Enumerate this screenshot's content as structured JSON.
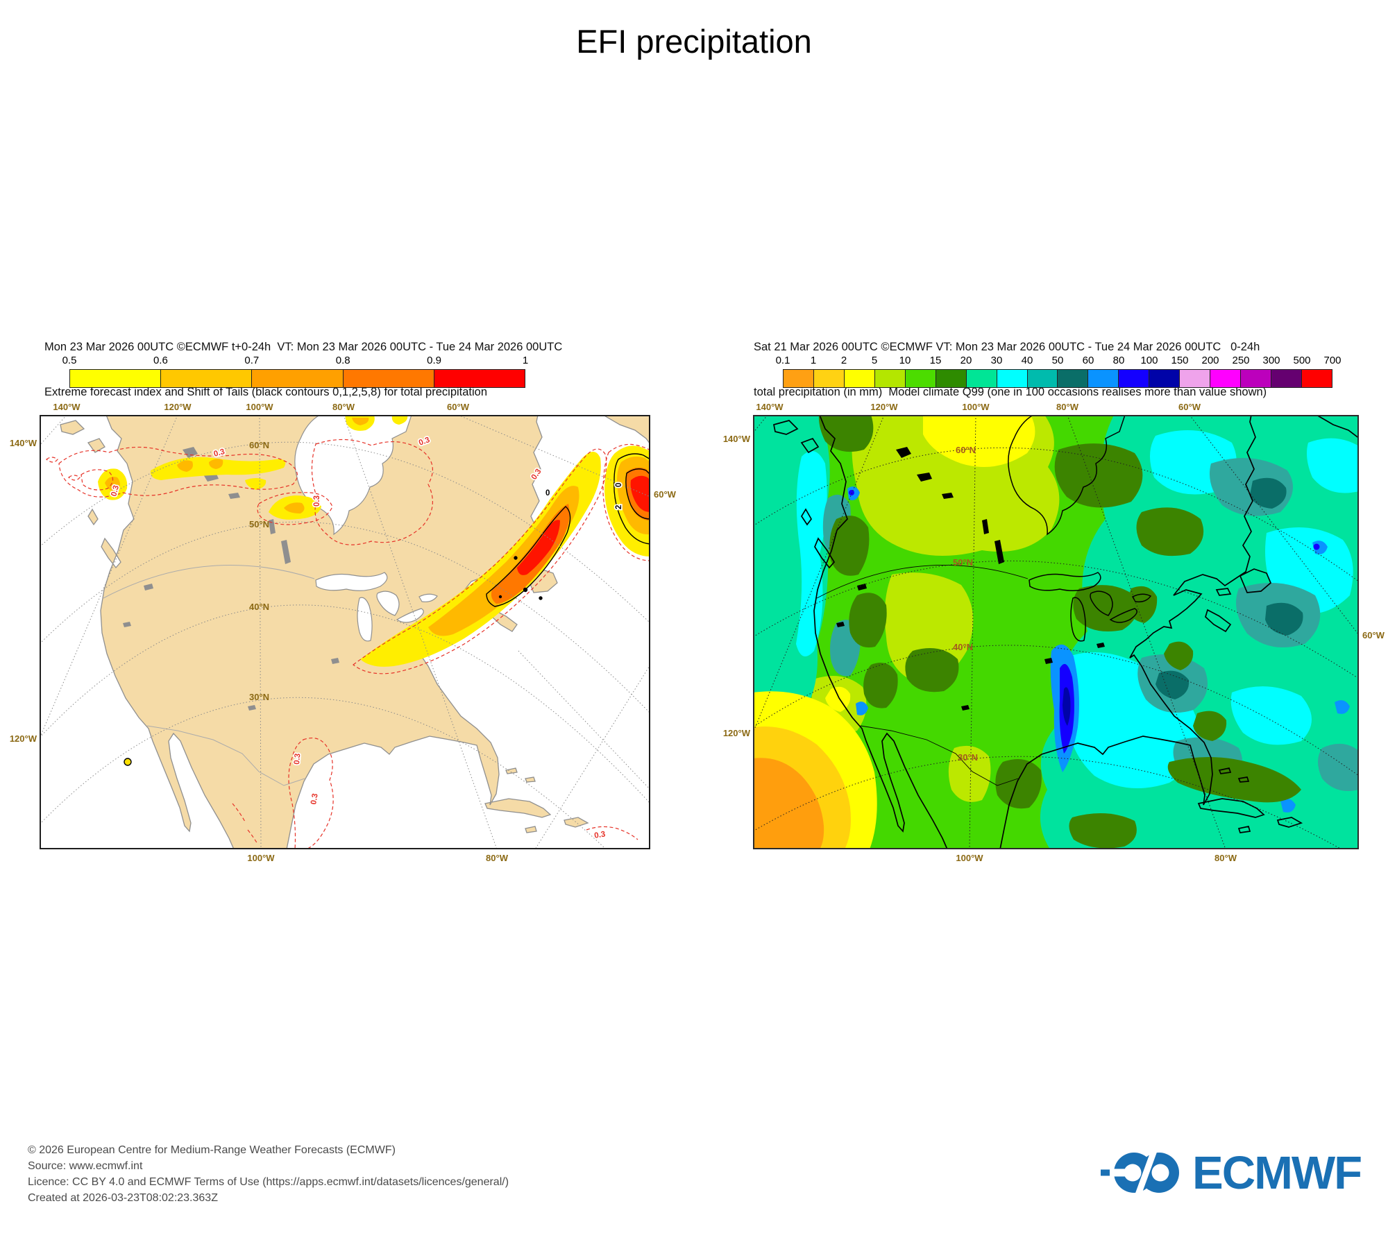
{
  "title": "EFI precipitation",
  "left_panel": {
    "header_line1": "Mon 23 Mar 2026 00UTC ©ECMWF t+0-24h  VT: Mon 23 Mar 2026 00UTC - Tue 24 Mar 2026 00UTC",
    "header_line2": "Extreme forecast index and Shift of Tails (black contours 0,1,2,5,8) for total precipitation",
    "colorbar": {
      "tick_labels": [
        "0.5",
        "0.6",
        "0.7",
        "0.8",
        "0.9",
        "1"
      ],
      "colors": [
        "#FFFF00",
        "#FFC800",
        "#FFA000",
        "#FF7800",
        "#FF0000"
      ]
    },
    "axis_labels": {
      "top": [
        "140°W",
        "120°W",
        "100°W",
        "80°W",
        "60°W"
      ],
      "bottom": [
        "100°W",
        "80°W"
      ],
      "left": [
        "140°W",
        "120°W"
      ],
      "right": [
        "60°W"
      ],
      "parallels": [
        "60°N",
        "50°N",
        "40°N",
        "30°N"
      ]
    },
    "contour_labels": {
      "efi": "0.3",
      "sot_zero": "0",
      "sot_two": "2"
    }
  },
  "right_panel": {
    "header_line1": "Sat 21 Mar 2026 00UTC ©ECMWF VT: Mon 23 Mar 2026 00UTC - Tue 24 Mar 2026 00UTC   0-24h",
    "header_line2": "total precipitation (in mm)  Model climate Q99 (one in 100 occasions realises more than value shown)",
    "colorbar": {
      "tick_labels": [
        "0.1",
        "1",
        "2",
        "5",
        "10",
        "15",
        "20",
        "30",
        "40",
        "50",
        "60",
        "80",
        "100",
        "150",
        "200",
        "250",
        "300",
        "500",
        "700"
      ],
      "colors": [
        "#FFA013",
        "#FFD213",
        "#FFFF00",
        "#B4E600",
        "#4CDC00",
        "#2E8B00",
        "#00E596",
        "#00FFFF",
        "#00BBAD",
        "#0A6E68",
        "#0A93FF",
        "#1400FF",
        "#0003A8",
        "#EFA3EB",
        "#FF00FF",
        "#BC00BC",
        "#650070",
        "#FF0000"
      ]
    },
    "axis_labels": {
      "top": [
        "140°W",
        "120°W",
        "100°W",
        "80°W",
        "60°W"
      ],
      "bottom": [
        "100°W",
        "80°W"
      ],
      "left": [
        "140°W",
        "120°W"
      ],
      "right": [
        "60°W"
      ],
      "parallels": [
        "60°N",
        "50°N",
        "40°N",
        "30°N"
      ]
    }
  },
  "footer": {
    "lines": [
      "© 2026 European Centre for Medium-Range Weather Forecasts (ECMWF)",
      "Source: www.ecmwf.int",
      "Licence: CC BY 4.0 and ECMWF Terms of Use (https://apps.ecmwf.int/datasets/licences/general/)",
      "Created at 2026-03-23T08:02:23.363Z"
    ]
  },
  "logo": {
    "text": "ECMWF",
    "color": "#1A70B4"
  }
}
